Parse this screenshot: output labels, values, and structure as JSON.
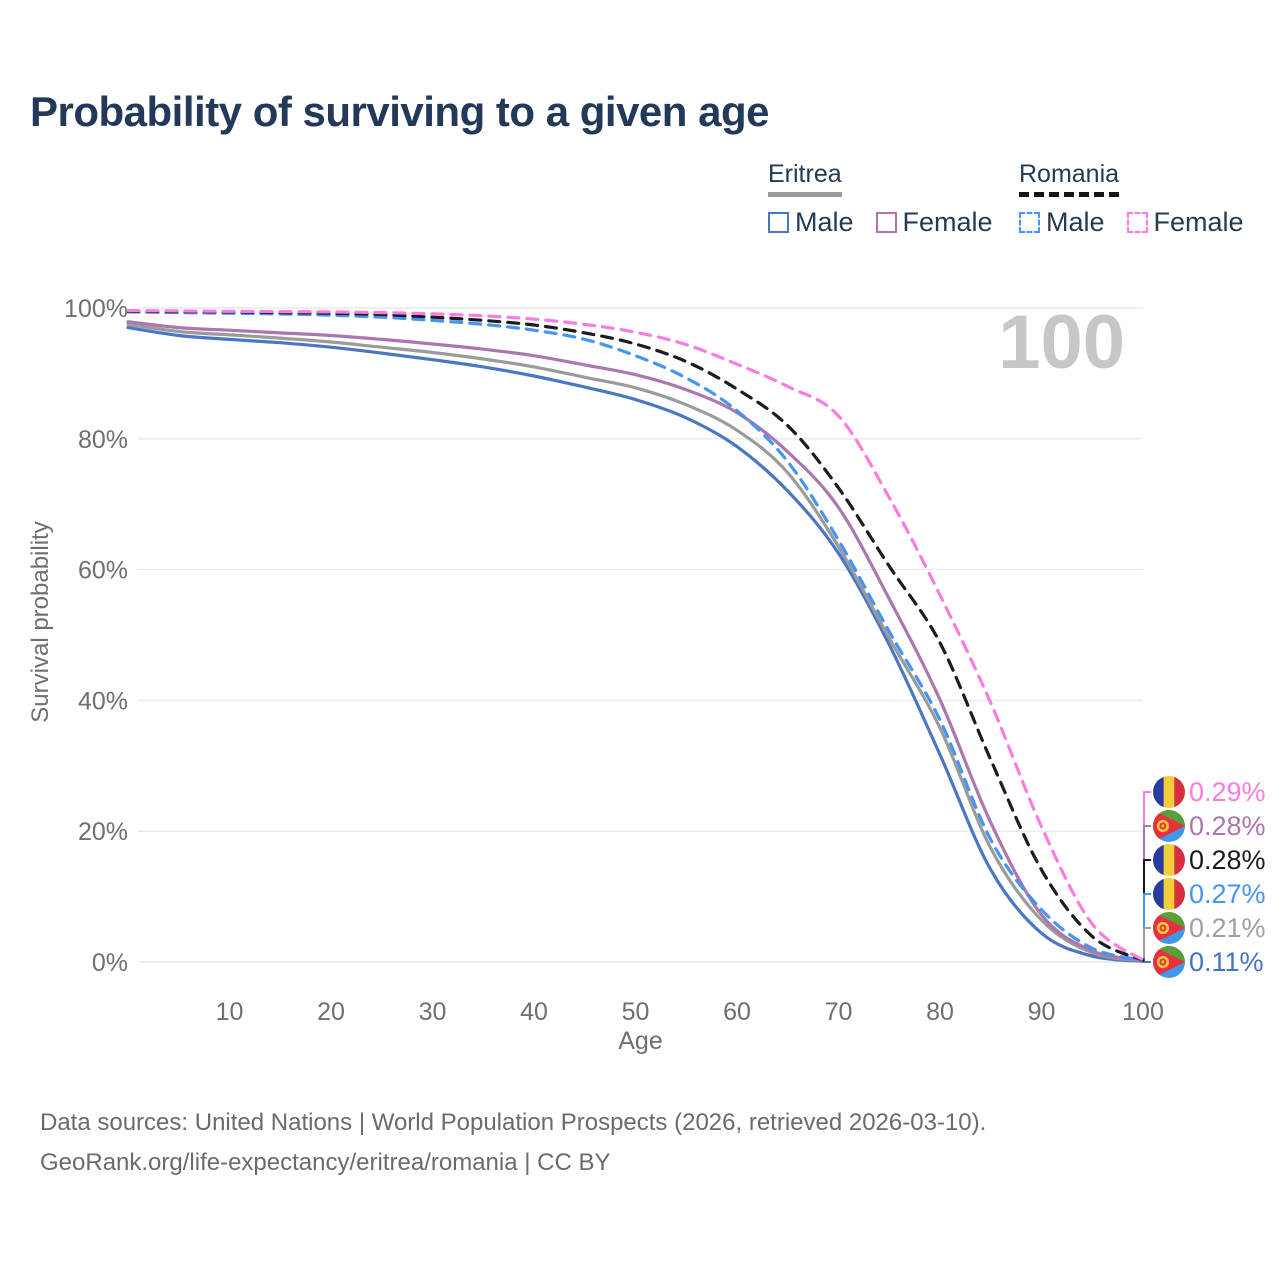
{
  "title": "Probability of surviving to a given age",
  "legend": {
    "groups": [
      {
        "label": "Eritrea",
        "line_color": "#9b9b9b",
        "line_style": "solid",
        "items": [
          {
            "label": "Male",
            "color": "#4a77c4",
            "dashed": false
          },
          {
            "label": "Female",
            "color": "#ab77ae",
            "dashed": false
          }
        ]
      },
      {
        "label": "Romania",
        "line_color": "#141414",
        "line_style": "dashed",
        "items": [
          {
            "label": "Male",
            "color": "#4695f2",
            "dashed": true
          },
          {
            "label": "Female",
            "color": "#fb7ce0",
            "dashed": true
          }
        ]
      }
    ]
  },
  "chart_data": {
    "type": "line",
    "xlabel": "Age",
    "ylabel": "Survival probability",
    "xlim": [
      0,
      100
    ],
    "ylim": [
      0,
      100
    ],
    "grid": true,
    "legend_position": "top-right",
    "hovered_age_label": "100",
    "x_ticks": [
      10,
      20,
      30,
      40,
      50,
      60,
      70,
      80,
      90,
      100
    ],
    "y_tick_values": [
      0,
      20,
      40,
      60,
      80,
      100
    ],
    "y_tick_labels": [
      "0%",
      "20%",
      "40%",
      "60%",
      "80%",
      "100%"
    ],
    "ages": [
      0,
      5,
      10,
      15,
      20,
      25,
      30,
      35,
      40,
      45,
      50,
      55,
      60,
      65,
      70,
      75,
      80,
      85,
      90,
      95,
      100
    ],
    "series": [
      {
        "id": "eritrea_male",
        "name": "Eritrea Male",
        "country": "Eritrea",
        "sex": "Male",
        "color": "#4a77c4",
        "dashed": false,
        "values": [
          97.0,
          95.8,
          95.2,
          94.7,
          94.0,
          93.1,
          92.1,
          91.0,
          89.6,
          87.9,
          86.0,
          83.2,
          78.8,
          72.0,
          62.5,
          48.5,
          31.7,
          14.1,
          4.4,
          0.9,
          0.11
        ]
      },
      {
        "id": "eritrea_both",
        "name": "Eritrea (both sexes)",
        "country": "Eritrea",
        "sex": "Both",
        "color": "#9b9b9b",
        "dashed": false,
        "values": [
          97.5,
          96.4,
          95.9,
          95.4,
          94.8,
          94.0,
          93.2,
          92.2,
          91.0,
          89.4,
          87.8,
          85.2,
          81.3,
          74.8,
          63.5,
          49.5,
          35.8,
          17.4,
          6.4,
          1.4,
          0.21
        ]
      },
      {
        "id": "eritrea_female",
        "name": "Eritrea Female",
        "country": "Eritrea",
        "sex": "Female",
        "color": "#ab77ae",
        "dashed": false,
        "values": [
          97.9,
          97.0,
          96.6,
          96.2,
          95.8,
          95.2,
          94.5,
          93.7,
          92.7,
          91.3,
          89.8,
          87.5,
          84.0,
          78.0,
          69.5,
          55.5,
          40.1,
          21.3,
          7.2,
          1.7,
          0.28
        ]
      },
      {
        "id": "romania_male",
        "name": "Romania Male",
        "country": "Romania",
        "sex": "Male",
        "color": "#4695f2",
        "dashed": true,
        "values": [
          99.4,
          99.3,
          99.2,
          99.1,
          98.9,
          98.6,
          98.1,
          97.5,
          96.6,
          95.2,
          92.7,
          89.3,
          84.3,
          76.5,
          64.5,
          50.5,
          37.0,
          18.7,
          8.0,
          2.1,
          0.27
        ]
      },
      {
        "id": "romania_both",
        "name": "Romania (both sexes)",
        "country": "Romania",
        "sex": "Both",
        "color": "#1c1c1c",
        "dashed": true,
        "values": [
          99.5,
          99.45,
          99.4,
          99.3,
          99.2,
          99.0,
          98.6,
          98.1,
          97.4,
          96.2,
          94.5,
          91.8,
          87.6,
          82.0,
          72.5,
          60.5,
          48.8,
          30.9,
          14.1,
          3.9,
          0.28
        ]
      },
      {
        "id": "romania_female",
        "name": "Romania Female",
        "country": "Romania",
        "sex": "Female",
        "color": "#fb7ce0",
        "dashed": true,
        "values": [
          99.6,
          99.55,
          99.5,
          99.45,
          99.4,
          99.3,
          99.1,
          98.8,
          98.3,
          97.5,
          96.3,
          94.4,
          91.4,
          88.0,
          83.5,
          71.0,
          56.1,
          39.6,
          20.7,
          5.8,
          0.29
        ]
      }
    ],
    "end_labels": [
      {
        "value": "0.29%",
        "flag": "romania",
        "series": "romania_female",
        "color": "#fb7ce0"
      },
      {
        "value": "0.28%",
        "flag": "eritrea",
        "series": "eritrea_female",
        "color": "#ab77ae"
      },
      {
        "value": "0.28%",
        "flag": "romania",
        "series": "romania_both",
        "color": "#1a1a1a"
      },
      {
        "value": "0.27%",
        "flag": "romania",
        "series": "romania_male",
        "color": "#4695f2"
      },
      {
        "value": "0.21%",
        "flag": "eritrea",
        "series": "eritrea_both",
        "color": "#9f9f9f"
      },
      {
        "value": "0.11%",
        "flag": "eritrea",
        "series": "eritrea_male",
        "color": "#4372cc"
      }
    ],
    "flags": {
      "romania": {
        "stripes": [
          "#2a3d9e",
          "#f2ce3c",
          "#d63040"
        ]
      },
      "eritrea": {
        "green": "#5a9e3c",
        "blue": "#3f97e8",
        "red": "#e8313f",
        "gold": "#f6c33f"
      }
    }
  },
  "footer": {
    "line1": "Data sources: United Nations | World Population Prospects (2026, retrieved 2026-03-10).",
    "line2": "GeoRank.org/life-expectancy/eritrea/romania | CC BY"
  }
}
